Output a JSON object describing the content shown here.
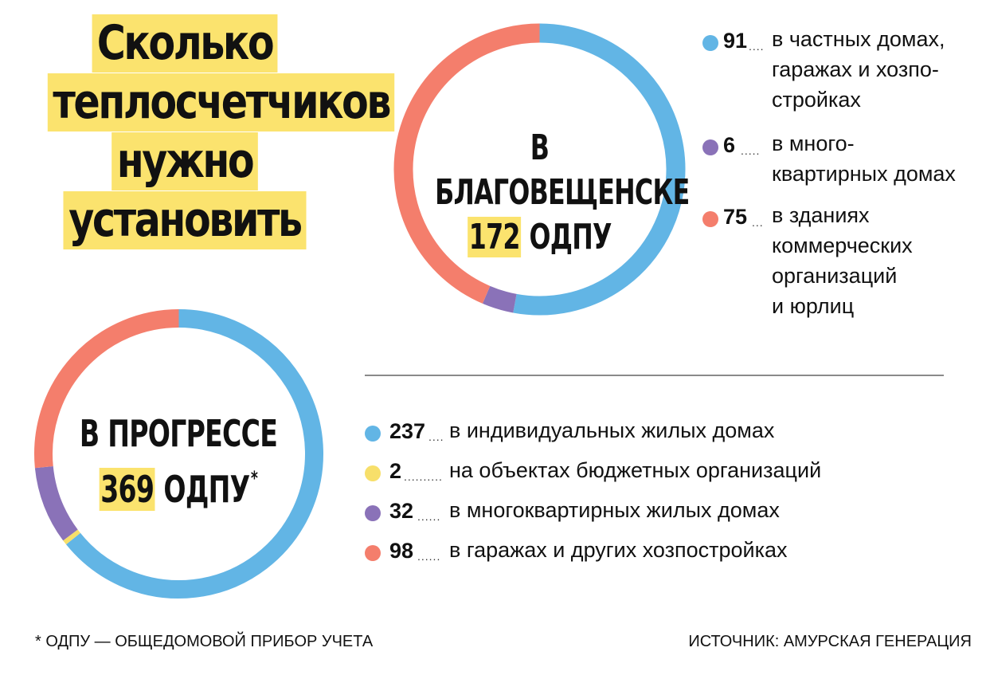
{
  "headline": [
    "Сколько",
    "теплосчетчиков",
    "нужно",
    "установить"
  ],
  "chart_data": [
    {
      "type": "pie",
      "subtype": "donut",
      "title": "В БЛАГОВЕЩЕНСКЕ",
      "total": "172",
      "total_unit": "ОДПУ",
      "total_note": "",
      "slices": [
        {
          "value": 91,
          "label": "в частных домах, гаражах и хозпо-стройках",
          "color": "#62b5e5"
        },
        {
          "value": 6,
          "label": "в много-квартирных домах",
          "color": "#8a72b8"
        },
        {
          "value": 75,
          "label": "в зданиях коммерческих организаций и юрлиц",
          "color": "#f47e6c"
        }
      ]
    },
    {
      "type": "pie",
      "subtype": "donut",
      "title": "В ПРОГРЕССЕ",
      "total": "369",
      "total_unit": "ОДПУ",
      "total_note": "*",
      "slices": [
        {
          "value": 237,
          "label": "в индивидуальных жилых домах",
          "color": "#62b5e5"
        },
        {
          "value": 2,
          "label": "на объектах бюджетных организаций",
          "color": "#f7df6a"
        },
        {
          "value": 32,
          "label": "в многоквартирных жилых домах",
          "color": "#8a72b8"
        },
        {
          "value": 98,
          "label": "в гаражах и других хозпостройках",
          "color": "#f47e6c"
        }
      ]
    }
  ],
  "legend1": [
    {
      "num": "91",
      "dots": "....",
      "text": "в частных домах,\nгаражах и хозпо-\nстройках"
    },
    {
      "num": "6",
      "dots": ".....",
      "text": "в много-\nквартирных домах"
    },
    {
      "num": "75",
      "dots": "...",
      "text": "в зданиях\nкоммерческих\nорганизаций\nи юрлиц"
    }
  ],
  "legend2": [
    {
      "num": "237",
      "dots": "....",
      "text": "в индивидуальных жилых домах"
    },
    {
      "num": "2",
      "dots": "..........",
      "text": "на объектах бюджетных организаций"
    },
    {
      "num": "32",
      "dots": "......",
      "text": "в многоквартирных жилых домах"
    },
    {
      "num": "98",
      "dots": "......",
      "text": "в гаражах и других хозпостройках"
    }
  ],
  "footnote": "* ОДПУ — ОБЩЕДОМОВОЙ ПРИБОР УЧЕТА",
  "source": "ИСТОЧНИК: АМУРСКАЯ  ГЕНЕРАЦИЯ"
}
